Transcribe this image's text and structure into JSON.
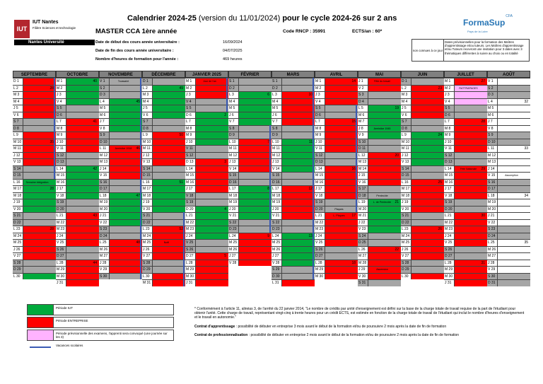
{
  "header": {
    "logo_mark": "IUT",
    "logo_line1": "IUT Nantes",
    "logo_line2": "Filière Sciences et technologie",
    "logo_band": "Nantes Université",
    "title_bold1": "Calendrier 2024-25",
    "title_mid": " (version du 11/01/2024) ",
    "title_bold2": "pour le cycle 2024-26 sur 2 ans",
    "program": "MASTER CCA 1ère année",
    "rncp": "Code RNCP : 35991",
    "ects": "ECTS/an : 60*",
    "info": [
      {
        "label": "Date de début des cours année universitaire :",
        "value": "16/09/2024"
      },
      {
        "label": "Date de fin des cours année universitaire :",
        "value": "04/07/2025"
      },
      {
        "label": "Nombre d'heures de formation pour l'année :",
        "value": "469 heures"
      }
    ],
    "formasup": {
      "cfa": "CFA",
      "name": "FormaSup",
      "sub": "Pays de la Loire"
    },
    "note_box": {
      "left": "non connues à ce jour",
      "right": "Dates prévisionnelles pour la formation des Maîtres d'apprentissage et/ou tuteurs. Les Maîtres d'apprentissage et/ou Tuteurs recevront une invitation pour 3 dates avec 3 thématiques différentes à suivre au choix ou en totalité"
    }
  },
  "colors": {
    "iut": "#00aa3c",
    "entreprise": "#ff0000",
    "exam": "#ffb3ff",
    "weekend": "#a6a6a6",
    "vacances": "#3b5bb5"
  },
  "months": [
    {
      "name": "SEPTEMBRE",
      "start": "D",
      "days": 30,
      "seg": [
        [
          1,
          1,
          "E"
        ],
        [
          2,
          6,
          "E"
        ],
        [
          7,
          8,
          "W"
        ],
        [
          9,
          13,
          "E"
        ],
        [
          14,
          15,
          "W"
        ],
        [
          16,
          20,
          "I"
        ],
        [
          21,
          22,
          "W"
        ],
        [
          23,
          27,
          "E"
        ],
        [
          28,
          29,
          "W"
        ],
        [
          30,
          30,
          "I"
        ]
      ],
      "vals": {
        "2": "28",
        "9": "",
        "10": "35",
        "17": "28",
        "23": "28"
      },
      "labels": {
        "16": "Semaine intégration"
      }
    },
    {
      "name": "OCTOBRE",
      "start": "M",
      "days": 31,
      "seg": [
        [
          1,
          4,
          "I"
        ],
        [
          5,
          6,
          "W"
        ],
        [
          7,
          11,
          "E"
        ],
        [
          12,
          13,
          "W"
        ],
        [
          14,
          18,
          "I"
        ],
        [
          19,
          20,
          "W"
        ],
        [
          21,
          25,
          "E"
        ],
        [
          26,
          27,
          "W"
        ],
        [
          28,
          31,
          "E"
        ]
      ],
      "vals": {
        "1": "40",
        "7": "41",
        "14": "42",
        "21": "43",
        "28": "44"
      },
      "labels": {}
    },
    {
      "name": "NOVEMBRE",
      "start": "V",
      "days": 30,
      "seg": [
        [
          1,
          1,
          "W"
        ],
        [
          2,
          3,
          "W"
        ],
        [
          4,
          8,
          "I"
        ],
        [
          9,
          10,
          "W"
        ],
        [
          11,
          15,
          "E"
        ],
        [
          16,
          17,
          "W"
        ],
        [
          18,
          22,
          "I"
        ],
        [
          23,
          24,
          "W"
        ],
        [
          25,
          29,
          "E"
        ],
        [
          30,
          30,
          "W"
        ]
      ],
      "vals": {
        "4": "45",
        "11": "46",
        "18": "47",
        "25": "48"
      },
      "labels": {
        "1": "Toussaint",
        "11": "Armistice 1918"
      }
    },
    {
      "name": "DÉCEMBRE",
      "start": "D",
      "days": 31,
      "seg": [
        [
          1,
          1,
          "W"
        ],
        [
          2,
          6,
          "I"
        ],
        [
          7,
          8,
          "W"
        ],
        [
          9,
          13,
          "E"
        ],
        [
          14,
          15,
          "W"
        ],
        [
          16,
          20,
          "I"
        ],
        [
          21,
          22,
          "W"
        ],
        [
          23,
          27,
          "E"
        ],
        [
          28,
          29,
          "W"
        ],
        [
          30,
          31,
          "E"
        ]
      ],
      "vals": {
        "2": "49",
        "9": "50",
        "16": "51",
        "23": "52"
      },
      "labels": {
        "25": "Noël"
      }
    },
    {
      "name": "JANVIER 2025",
      "start": "M",
      "days": 31,
      "seg": [
        [
          1,
          3,
          "E"
        ],
        [
          4,
          5,
          "W"
        ],
        [
          6,
          10,
          "I"
        ],
        [
          11,
          12,
          "W"
        ],
        [
          13,
          17,
          "E"
        ],
        [
          18,
          19,
          "W"
        ],
        [
          20,
          24,
          "I"
        ],
        [
          25,
          26,
          "W"
        ],
        [
          27,
          31,
          "E"
        ]
      ],
      "vals": {
        "6": "2",
        "13": "3",
        "20": "4",
        "27": "5"
      },
      "labels": {
        "1": "Jour de l'an"
      }
    },
    {
      "name": "FÉVRIER",
      "start": "S",
      "days": 28,
      "seg": [
        [
          1,
          2,
          "W"
        ],
        [
          3,
          7,
          "I"
        ],
        [
          8,
          9,
          "W"
        ],
        [
          10,
          14,
          "E"
        ],
        [
          15,
          16,
          "W"
        ],
        [
          17,
          21,
          "I"
        ],
        [
          22,
          23,
          "W"
        ],
        [
          24,
          28,
          "E"
        ]
      ],
      "vals": {
        "3": "6",
        "10": "7",
        "17": "8",
        "24": "9"
      },
      "labels": {}
    },
    {
      "name": "MARS",
      "start": "S",
      "days": 31,
      "seg": [
        [
          1,
          2,
          "W"
        ],
        [
          3,
          7,
          "E"
        ],
        [
          8,
          9,
          "W"
        ],
        [
          10,
          14,
          "I"
        ],
        [
          15,
          16,
          "W"
        ],
        [
          17,
          21,
          "E"
        ],
        [
          22,
          23,
          "W"
        ],
        [
          24,
          28,
          "I"
        ],
        [
          29,
          30,
          "W"
        ],
        [
          31,
          31,
          "E"
        ]
      ],
      "vals": {
        "3": "10",
        "10": "11",
        "17": "12",
        "24": "13"
      },
      "labels": {}
    },
    {
      "name": "AVRIL",
      "start": "M",
      "days": 30,
      "seg": [
        [
          1,
          4,
          "E"
        ],
        [
          5,
          6,
          "W"
        ],
        [
          7,
          11,
          "E"
        ],
        [
          12,
          13,
          "W"
        ],
        [
          14,
          18,
          "E"
        ],
        [
          19,
          20,
          "W"
        ],
        [
          21,
          25,
          "E"
        ],
        [
          26,
          27,
          "W"
        ],
        [
          28,
          30,
          "E"
        ]
      ],
      "vals": {
        "1": "14",
        "7": "15",
        "14": "16",
        "21": "17",
        "28": "18"
      },
      "labels": {
        "20": "Pâques",
        "21": "L. Pâques"
      }
    },
    {
      "name": "MAI",
      "start": "J",
      "days": 31,
      "seg": [
        [
          1,
          2,
          "E"
        ],
        [
          3,
          4,
          "W"
        ],
        [
          5,
          9,
          "I"
        ],
        [
          10,
          11,
          "W"
        ],
        [
          12,
          16,
          "E"
        ],
        [
          17,
          18,
          "W"
        ],
        [
          19,
          23,
          "I"
        ],
        [
          24,
          25,
          "W"
        ],
        [
          26,
          30,
          "E"
        ],
        [
          31,
          31,
          "W"
        ]
      ],
      "vals": {
        "5": "19",
        "12": "20",
        "19": "21",
        "26": "22"
      },
      "labels": {
        "1": "Fête du travail",
        "8": "Armistice 1945",
        "18": "Pentecôte",
        "19": "L. de Pentecôte",
        "29": "Ascension"
      }
    },
    {
      "name": "JUIN",
      "start": "D",
      "days": 30,
      "seg": [
        [
          1,
          1,
          "W"
        ],
        [
          2,
          6,
          "E"
        ],
        [
          7,
          8,
          "W"
        ],
        [
          9,
          13,
          "I"
        ],
        [
          14,
          15,
          "W"
        ],
        [
          16,
          20,
          "E"
        ],
        [
          21,
          22,
          "W"
        ],
        [
          23,
          27,
          "E"
        ],
        [
          28,
          29,
          "W"
        ],
        [
          30,
          30,
          "E"
        ]
      ],
      "vals": {
        "2": "23",
        "9": "24",
        "16": "25",
        "23": "26"
      },
      "labels": {}
    },
    {
      "name": "JUILLET",
      "start": "M",
      "days": 31,
      "seg": [
        [
          1,
          1,
          "E"
        ],
        [
          2,
          4,
          "X"
        ],
        [
          5,
          6,
          "W"
        ],
        [
          7,
          11,
          "E"
        ],
        [
          12,
          13,
          "W"
        ],
        [
          14,
          18,
          "E"
        ],
        [
          19,
          20,
          "W"
        ],
        [
          21,
          25,
          "E"
        ],
        [
          26,
          27,
          "W"
        ],
        [
          28,
          31,
          "E"
        ]
      ],
      "vals": {
        "1": "27",
        "7": "28",
        "14": "29",
        "21": "30",
        "28": "31"
      },
      "labels": {
        "2": "RATTRAPAGES",
        "14": "Fête Nationale"
      }
    },
    {
      "name": "AOÛT",
      "start": "V",
      "days": 31,
      "seg": [
        [
          1,
          1,
          "N"
        ],
        [
          2,
          3,
          "W"
        ],
        [
          4,
          8,
          "N"
        ],
        [
          9,
          10,
          "W"
        ],
        [
          11,
          15,
          "N"
        ],
        [
          16,
          17,
          "W"
        ],
        [
          18,
          22,
          "N"
        ],
        [
          23,
          24,
          "W"
        ],
        [
          25,
          29,
          "N"
        ],
        [
          30,
          31,
          "W"
        ]
      ],
      "vals": {
        "4": "32",
        "11": "33",
        "18": "34",
        "25": "35"
      },
      "labels": {
        "15": "Assomption"
      }
    }
  ],
  "vacances": [
    {
      "month": 3,
      "from": 21,
      "to": 31
    },
    {
      "month": 4,
      "from": 1,
      "to": 5
    },
    {
      "month": 5,
      "from": 8,
      "to": 23
    },
    {
      "month": 7,
      "from": 5,
      "to": 20
    },
    {
      "month": 0,
      "from": 1,
      "to": 15
    },
    {
      "month": 2,
      "from": 1,
      "to": 30
    },
    {
      "month": 6,
      "from": 1,
      "to": 30
    }
  ],
  "legend": [
    {
      "key": "I",
      "text": "Période IUT"
    },
    {
      "key": "E",
      "text": "Période ENTREPRISE"
    },
    {
      "key": "X",
      "text": "Période prévisionnelle des examens, l'apprenti sera convoqué (une journée sur les 3)"
    },
    {
      "key": "V",
      "text": "Vacances scolaires"
    }
  ],
  "notes": {
    "n1": "* Conformément à l'article 11, alinéas 3, de l'arrêté du 22 janvier 2014, \"Le nombre de crédits par unité d'enseignement est défini sur la base de la charge totale de travail requise de la part de l'étudiant pour obtenir l'unité. Cette charge de travail, représentant vingt-cinq à trente heures pour un crédit ECTS, est estimée en fonction de la charge totale de travail de l'étudiant qui inclut le nombre d'heures d'enseignement et le travail en autonomie.\"",
    "n2_bold": "Contrat d'apprentissage",
    "n2": " : possibilité de débuter en entreprise 3 mois avant le début de la formation et/ou de poursuivre 2 mois après la date de fin de formation",
    "n3_bold": "Contrat de professionnalisation",
    "n3": " : possibilité de débuter en entreprise 2 mois avant le début de la formation et/ou de poursuivre 2 mois après la date de fin de formation"
  }
}
